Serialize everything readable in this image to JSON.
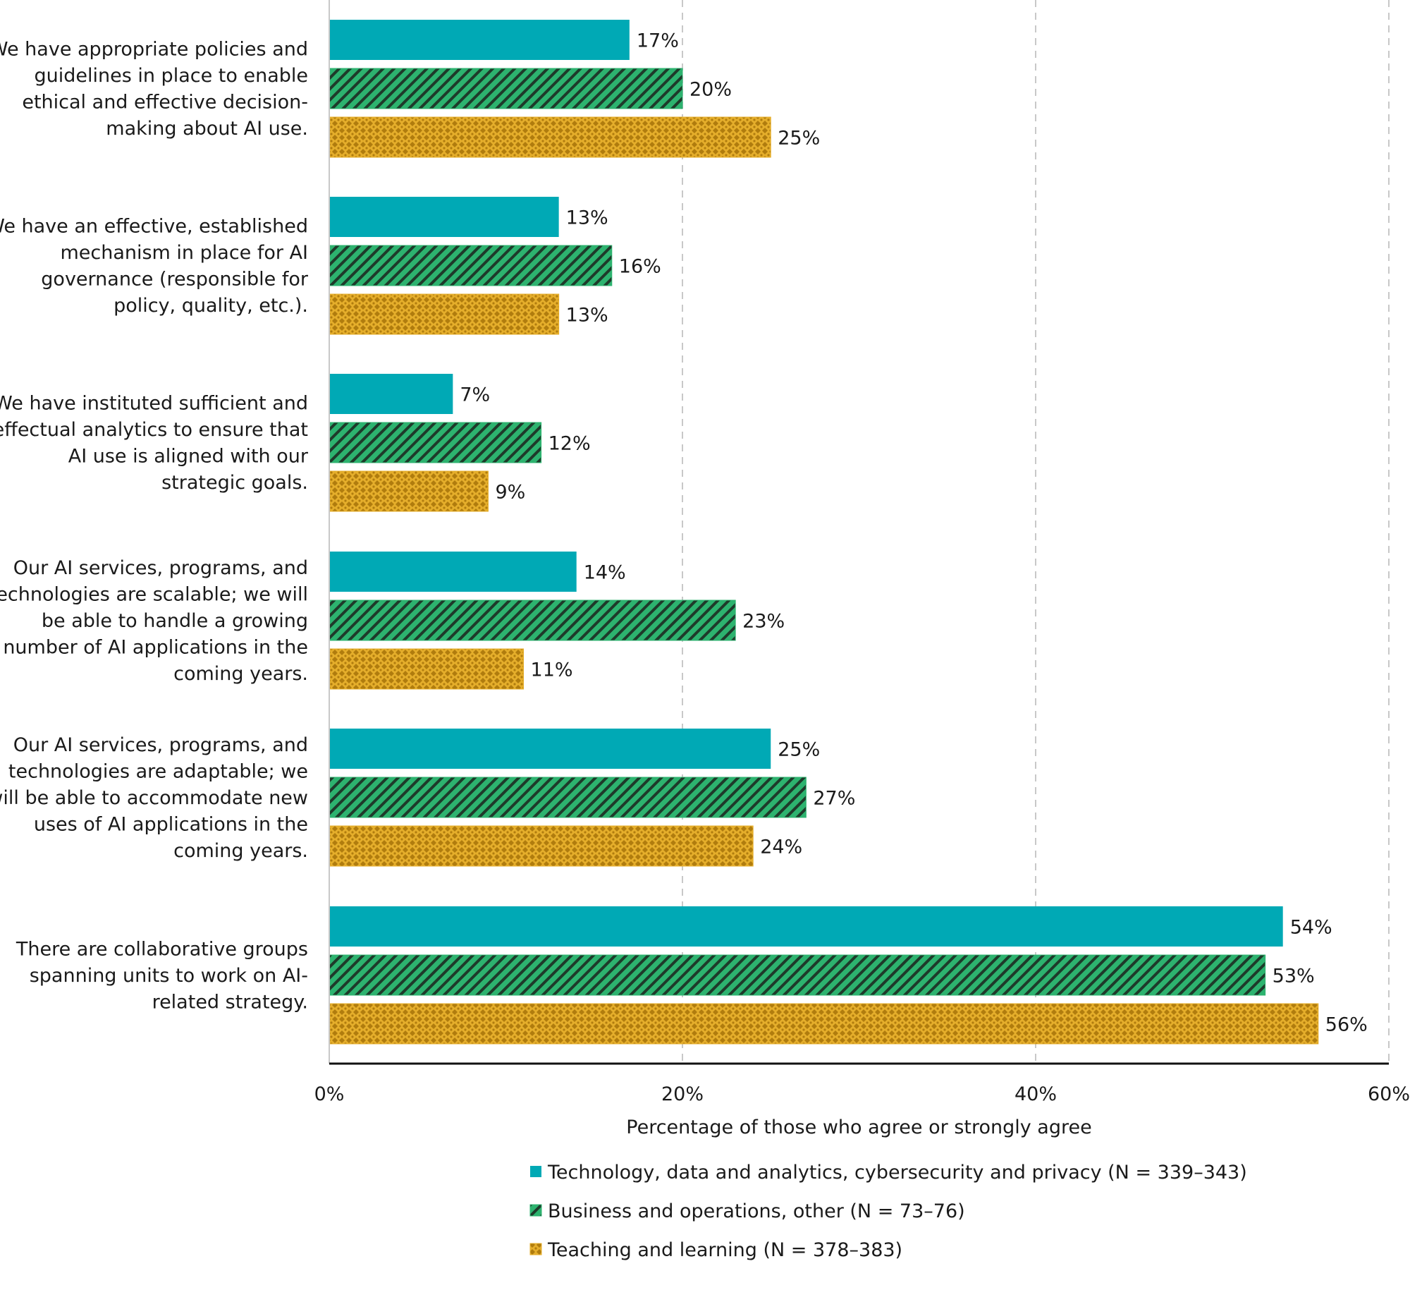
{
  "chart_data": {
    "type": "bar",
    "orientation": "horizontal",
    "title": "",
    "xlabel": "Percentage of those who agree or strongly agree",
    "ylabel": "",
    "xlim": [
      0,
      60
    ],
    "x_ticks": [
      "0%",
      "20%",
      "40%",
      "60%"
    ],
    "x_tick_values": [
      0,
      20,
      40,
      60
    ],
    "grid": "vertical dashed",
    "legend_position": "bottom-center",
    "categories": [
      {
        "lines": [
          "We have appropriate policies and",
          "guidelines in place to enable",
          "ethical and effective decision-",
          "making about AI use."
        ]
      },
      {
        "lines": [
          "We have an effective, established",
          "mechanism in place for AI",
          "governance (responsible for",
          "policy, quality, etc.)."
        ]
      },
      {
        "lines": [
          "We have instituted sufficient and",
          "effectual analytics to ensure that",
          "AI use is aligned with our",
          "strategic goals."
        ]
      },
      {
        "lines": [
          "Our AI services, programs, and",
          "technologies are scalable; we will",
          "be able to handle a growing",
          "number of AI applications in the",
          "coming years."
        ]
      },
      {
        "lines": [
          "Our AI services, programs, and",
          "technologies are adaptable; we",
          "will be able to accommodate new",
          "uses of AI applications in the",
          "coming years."
        ]
      },
      {
        "lines": [
          "There are collaborative groups",
          "spanning units to work on AI-",
          "related strategy."
        ]
      }
    ],
    "series": [
      {
        "name": "Technology, data and analytics, cybersecurity and privacy (N = 339–343)",
        "color": "#00a9b5",
        "pattern": "solid",
        "values": [
          17,
          13,
          7,
          14,
          25,
          54
        ],
        "labels": [
          "17%",
          "13%",
          "7%",
          "14%",
          "25%",
          "54%"
        ]
      },
      {
        "name": "Business and operations, other (N = 73–76)",
        "color": "#2db36f",
        "pattern": "diagonal-stripes",
        "values": [
          20,
          16,
          12,
          23,
          27,
          53
        ],
        "labels": [
          "20%",
          "16%",
          "12%",
          "23%",
          "27%",
          "53%"
        ]
      },
      {
        "name": "Teaching and learning (N = 378–383)",
        "color": "#e5ae2b",
        "pattern": "checker-dots",
        "values": [
          25,
          13,
          9,
          11,
          24,
          56
        ],
        "labels": [
          "25%",
          "13%",
          "9%",
          "11%",
          "24%",
          "56%"
        ]
      }
    ]
  }
}
